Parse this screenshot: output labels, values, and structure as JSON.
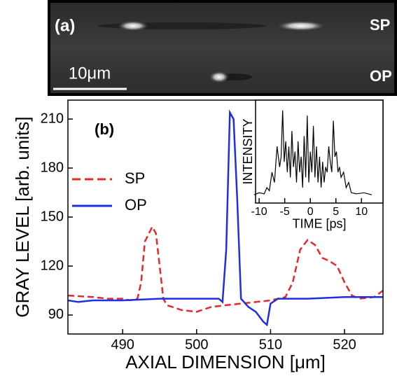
{
  "image_panel": {
    "label": "(a)",
    "top_label": "SP",
    "bottom_label": "OP",
    "scale_bar": "10μm"
  },
  "chart_data": [
    {
      "type": "line",
      "annotation": "(b)",
      "x_label": "AXIAL DIMENSION [μm]",
      "y_label": "GRAY LEVEL [arb. units]",
      "xlim": [
        482.6,
        525.2
      ],
      "ylim": [
        78.4,
        221.6
      ],
      "xticks": [
        490,
        500,
        510,
        520
      ],
      "yticks": [
        90,
        120,
        150,
        180,
        210
      ],
      "legend": "upper left",
      "series": [
        {
          "name": "SP",
          "color": "#e8262b",
          "dash": true,
          "x": [
            482.6,
            486,
            488,
            490,
            491,
            492,
            492.5,
            493,
            494,
            494.5,
            495,
            495.5,
            496,
            498,
            500,
            502,
            504,
            506,
            508,
            510,
            512,
            513,
            514,
            515,
            516,
            517,
            518,
            519,
            520,
            521,
            522,
            524,
            525.2
          ],
          "values": [
            102,
            101,
            100,
            100,
            99,
            100,
            110,
            135,
            144,
            140,
            120,
            100,
            96,
            93,
            92,
            95,
            96,
            97,
            98,
            99,
            101,
            110,
            130,
            136,
            133,
            125,
            123,
            120,
            110,
            102,
            100,
            101,
            105
          ]
        },
        {
          "name": "OP",
          "color": "#1f2ee0",
          "dash": false,
          "x": [
            482.6,
            484,
            486,
            490,
            495,
            500,
            503,
            503.5,
            504,
            504.5,
            505,
            505.5,
            506,
            507,
            508,
            509,
            509.5,
            510,
            511,
            515,
            520,
            525.2
          ],
          "values": [
            99,
            98,
            99,
            99,
            100,
            100,
            100,
            98,
            130,
            214,
            210,
            160,
            100,
            95,
            92,
            86,
            84,
            97,
            100,
            100,
            101,
            101
          ]
        }
      ]
    },
    {
      "type": "line",
      "x_label": "TIME [ps]",
      "y_label": "INTENSITY",
      "xlim": [
        -10.7,
        14.2
      ],
      "ylim": [
        0,
        1
      ],
      "xticks": [
        -10,
        -5,
        0,
        5,
        10
      ],
      "series": [
        {
          "color": "#000000",
          "dash": false,
          "x": [
            -11,
            -10,
            -9,
            -8.5,
            -8,
            -7.5,
            -7,
            -6.5,
            -6,
            -5.7,
            -5.4,
            -5.1,
            -4.8,
            -4.5,
            -4.2,
            -3.9,
            -3.6,
            -3.3,
            -3,
            -2.7,
            -2.4,
            -2.1,
            -1.8,
            -1.5,
            -1.2,
            -0.9,
            -0.6,
            -0.3,
            0,
            0.3,
            0.6,
            0.9,
            1.2,
            1.5,
            1.8,
            2.1,
            2.4,
            2.7,
            3,
            3.3,
            3.6,
            3.9,
            4.2,
            4.5,
            4.8,
            5.1,
            5.4,
            5.7,
            6,
            6.5,
            7,
            7.5,
            8,
            9,
            10.5,
            12
          ],
          "values": [
            0.08,
            0.1,
            0.09,
            0.15,
            0.12,
            0.3,
            0.2,
            0.55,
            0.35,
            0.45,
            0.9,
            0.4,
            0.6,
            0.3,
            0.55,
            0.25,
            0.7,
            0.35,
            0.5,
            0.2,
            0.6,
            0.3,
            0.45,
            0.15,
            0.65,
            0.25,
            0.85,
            0.2,
            0.5,
            0.3,
            0.75,
            0.25,
            0.55,
            0.2,
            0.45,
            0.15,
            0.4,
            0.2,
            0.35,
            0.3,
            0.55,
            0.4,
            0.3,
            0.8,
            0.45,
            0.5,
            0.3,
            0.35,
            0.25,
            0.3,
            0.15,
            0.2,
            0.1,
            0.09,
            0.1,
            0.08
          ]
        }
      ]
    }
  ]
}
